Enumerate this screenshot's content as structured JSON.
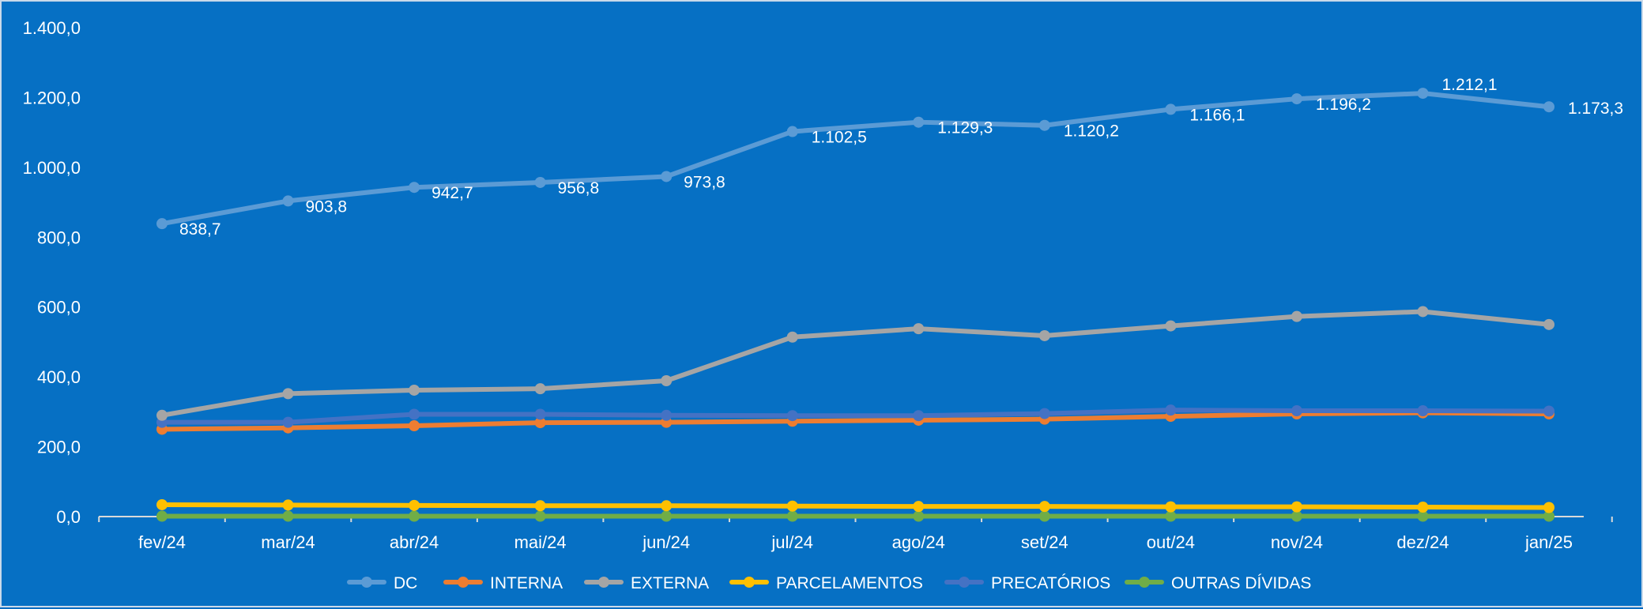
{
  "chart_data": {
    "type": "line",
    "title": "",
    "xlabel": "",
    "ylabel": "",
    "ylim": [
      0,
      1400
    ],
    "yticks": [
      "0,0",
      "200,0",
      "400,0",
      "600,0",
      "800,0",
      "1.000,0",
      "1.200,0",
      "1.400,0"
    ],
    "ytick_values": [
      0,
      200,
      400,
      600,
      800,
      1000,
      1200,
      1400
    ],
    "categories": [
      "fev/24",
      "mar/24",
      "abr/24",
      "mai/24",
      "jun/24",
      "jul/24",
      "ago/24",
      "set/24",
      "out/24",
      "nov/24",
      "dez/24",
      "jan/25"
    ],
    "grid": false,
    "legend_position": "bottom",
    "series": [
      {
        "name": "DC",
        "color": "#5b9bd5",
        "values": [
          838.7,
          903.8,
          942.7,
          956.8,
          973.8,
          1102.5,
          1129.3,
          1120.2,
          1166.1,
          1196.2,
          1212.1,
          1173.3
        ],
        "labels": [
          "838,7",
          "903,8",
          "942,7",
          "956,8",
          "973,8",
          "1.102,5",
          "1.129,3",
          "1.120,2",
          "1.166,1",
          "1.196,2",
          "1.212,1",
          "1.173,3"
        ]
      },
      {
        "name": "INTERNA",
        "color": "#ed7d31",
        "values": [
          250,
          254,
          260,
          269,
          270,
          273,
          276,
          279,
          287,
          294,
          297,
          294
        ]
      },
      {
        "name": "EXTERNA",
        "color": "#a5a5a5",
        "values": [
          290,
          352,
          362,
          366,
          389,
          514,
          538,
          518,
          546,
          573,
          587,
          550
        ]
      },
      {
        "name": "PARCELAMENTOS",
        "color": "#ffc000",
        "values": [
          34,
          33,
          32,
          31,
          31,
          30,
          29,
          29,
          28,
          28,
          27,
          26
        ]
      },
      {
        "name": "PRECATÓRIOS",
        "color": "#4472c4",
        "values": [
          270,
          270,
          293,
          293,
          290,
          289,
          289,
          295,
          305,
          303,
          303,
          302
        ]
      },
      {
        "name": "OUTRAS DÍVIDAS",
        "color": "#70ad47",
        "values": [
          1,
          1,
          1,
          1,
          1,
          1,
          1,
          1,
          1,
          1,
          1,
          1
        ]
      }
    ]
  }
}
